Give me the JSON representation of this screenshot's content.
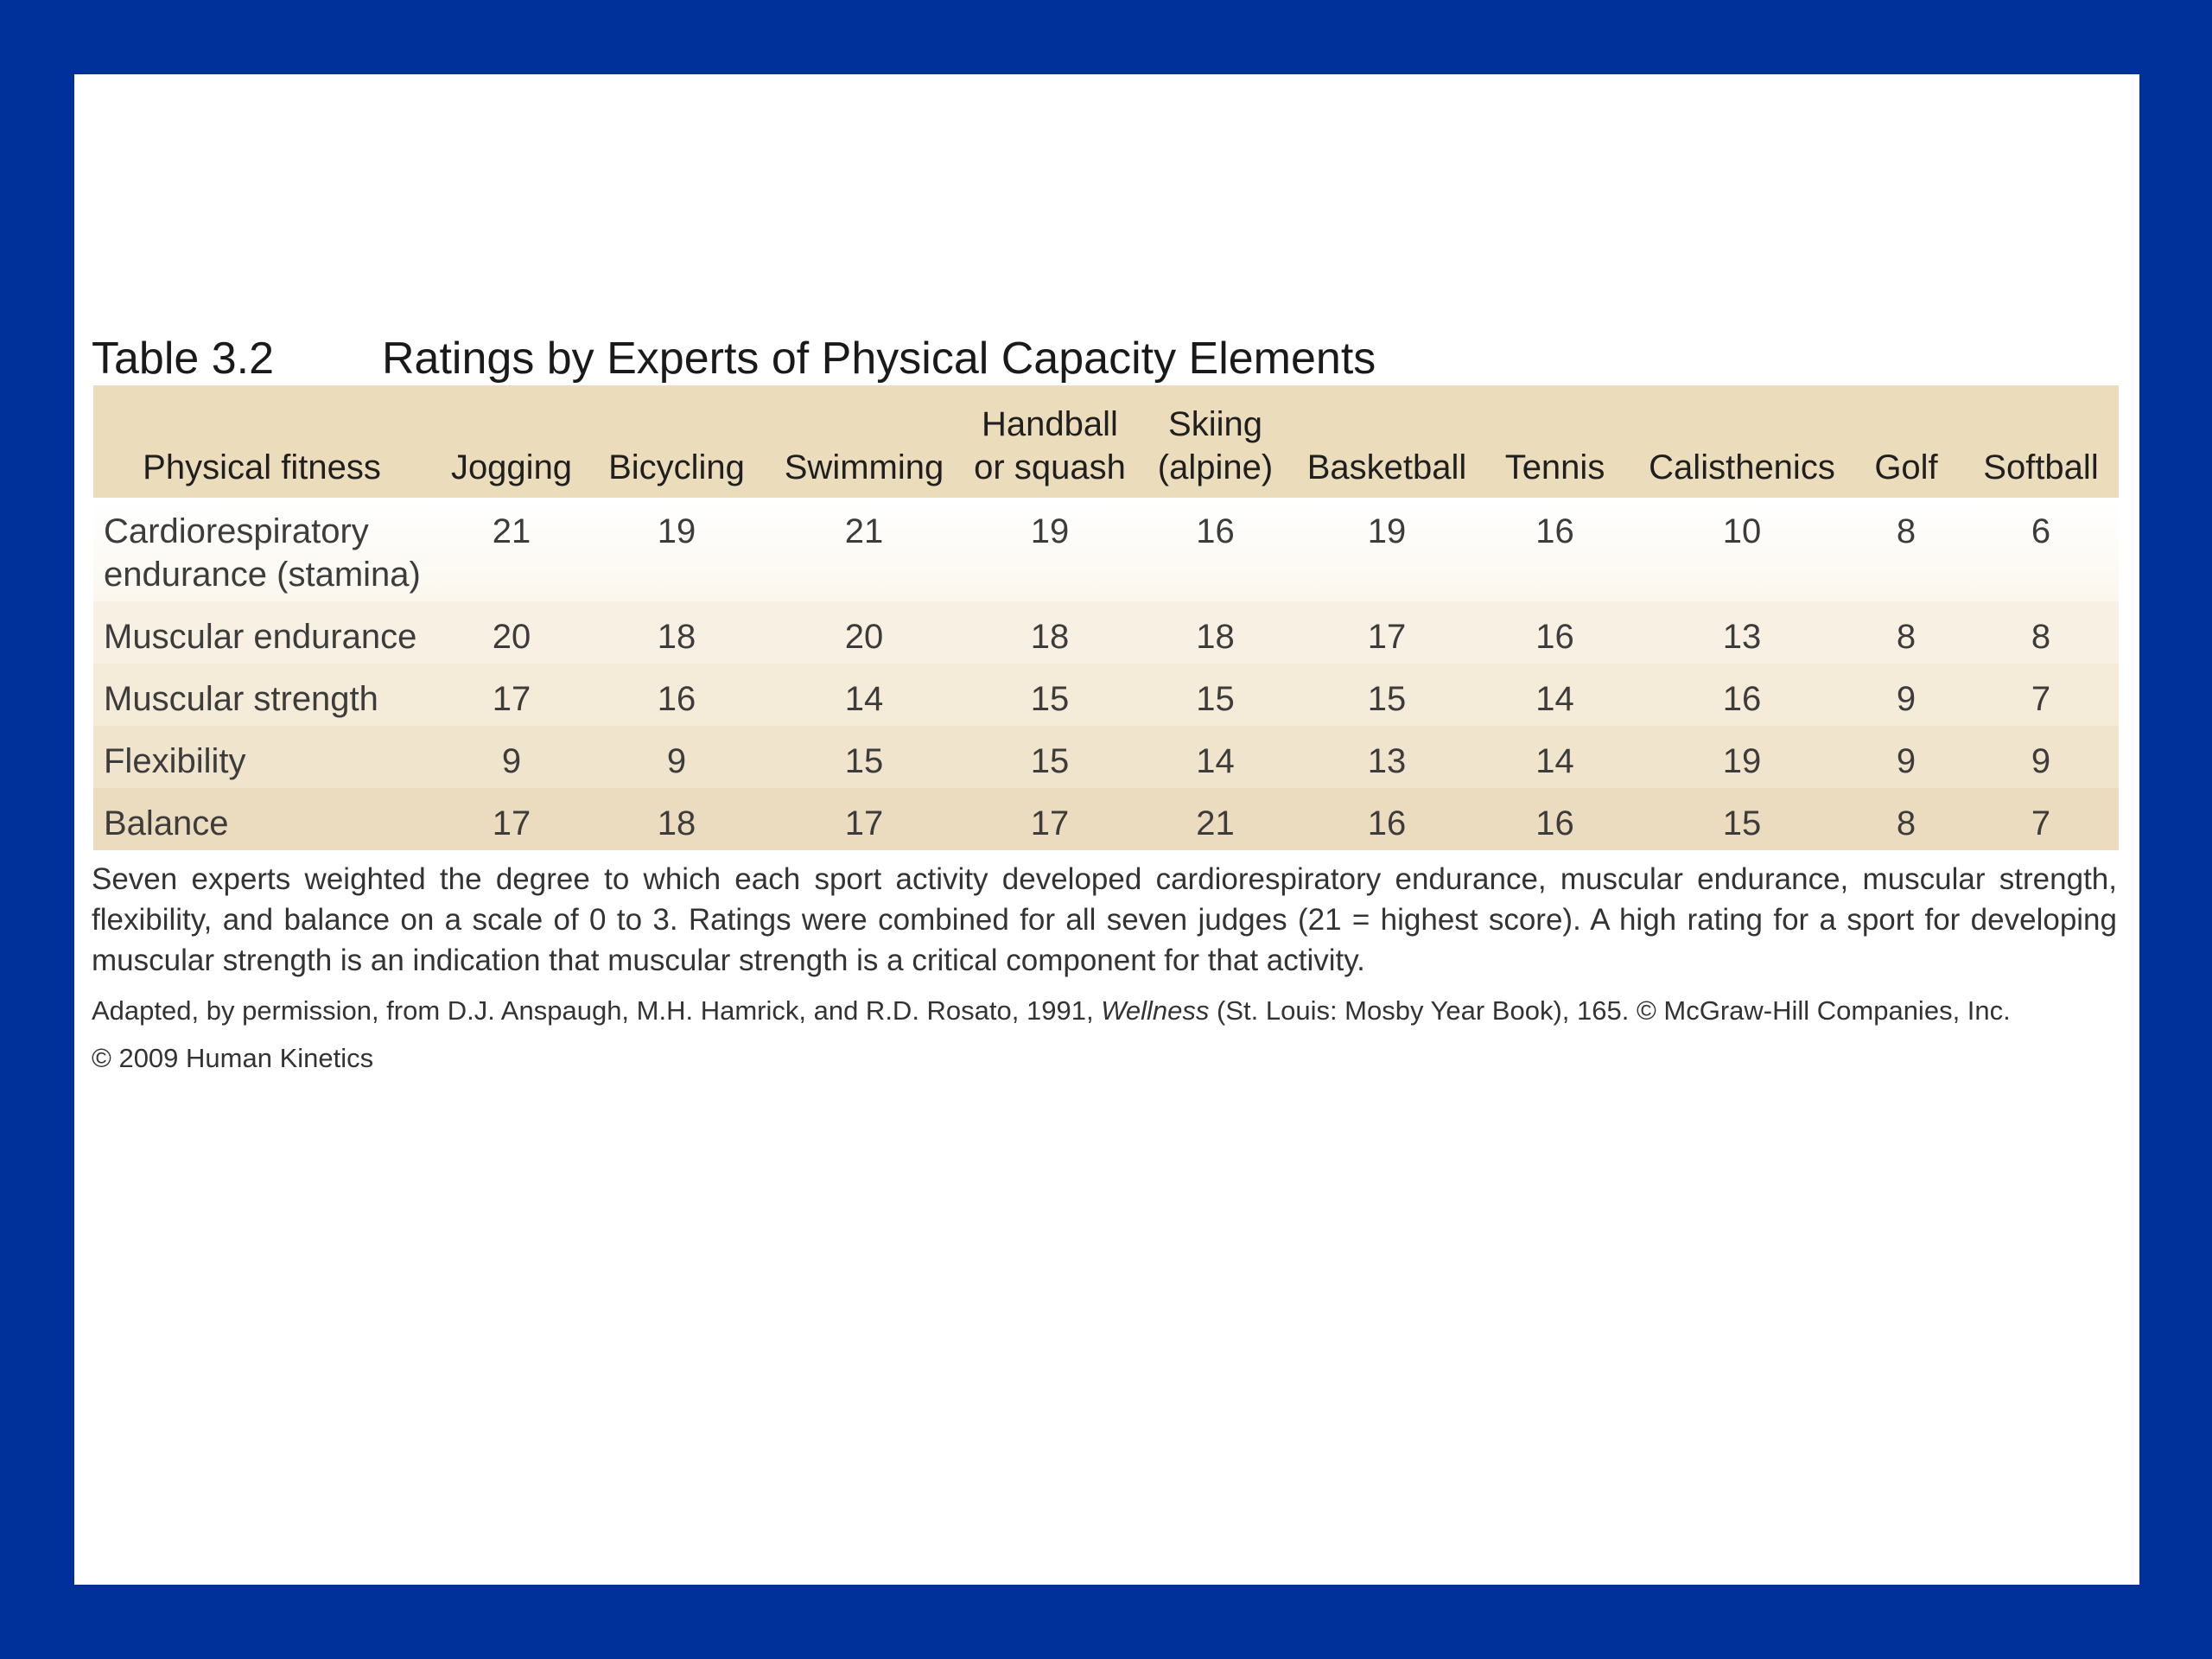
{
  "table": {
    "number": "Table 3.2",
    "title": "Ratings by Experts of Physical Capacity Elements",
    "stub_header": "Physical fitness",
    "columns": [
      {
        "line1": "",
        "line2": "Jogging"
      },
      {
        "line1": "",
        "line2": "Bicycling"
      },
      {
        "line1": "",
        "line2": "Swimming"
      },
      {
        "line1": "Handball",
        "line2": "or squash"
      },
      {
        "line1": "Skiing",
        "line2": "(alpine)"
      },
      {
        "line1": "",
        "line2": "Basketball"
      },
      {
        "line1": "",
        "line2": "Tennis"
      },
      {
        "line1": "",
        "line2": "Calisthenics"
      },
      {
        "line1": "",
        "line2": "Golf"
      },
      {
        "line1": "",
        "line2": "Softball"
      }
    ],
    "rows": [
      {
        "line1": "Cardiorespiratory",
        "line2": "endurance (stamina)",
        "values": [
          "21",
          "19",
          "21",
          "19",
          "16",
          "19",
          "16",
          "10",
          "8",
          "6"
        ]
      },
      {
        "line1": "Muscular endurance",
        "line2": "",
        "values": [
          "20",
          "18",
          "20",
          "18",
          "18",
          "17",
          "16",
          "13",
          "8",
          "8"
        ]
      },
      {
        "line1": "Muscular strength",
        "line2": "",
        "values": [
          "17",
          "16",
          "14",
          "15",
          "15",
          "15",
          "14",
          "16",
          "9",
          "7"
        ]
      },
      {
        "line1": "Flexibility",
        "line2": "",
        "values": [
          "9",
          "9",
          "15",
          "15",
          "14",
          "13",
          "14",
          "19",
          "9",
          "9"
        ]
      },
      {
        "line1": "Balance",
        "line2": "",
        "values": [
          "17",
          "18",
          "17",
          "17",
          "21",
          "16",
          "16",
          "15",
          "8",
          "7"
        ]
      }
    ]
  },
  "notes": "Seven experts weighted the degree to which each sport activity developed cardiorespiratory endurance, muscular endurance, muscular strength, flexibility, and balance on a scale of 0 to 3. Ratings were combined for all seven judges (21 = highest score). A high rating for a sport for developing muscular strength is an indication that muscular strength is a critical component for that activity.",
  "source": {
    "before": "Adapted, by permission, from D.J. Anspaugh, M.H. Hamrick, and R.D. Rosato, 1991, ",
    "italic": "Wellness",
    "after": " (St. Louis: Mosby Year Book), 165. © McGraw-Hill Companies, Inc."
  },
  "copyright": "© 2009 Human Kinetics",
  "colors": {
    "background": "#00309A",
    "header_band": "#EBDCBC"
  }
}
